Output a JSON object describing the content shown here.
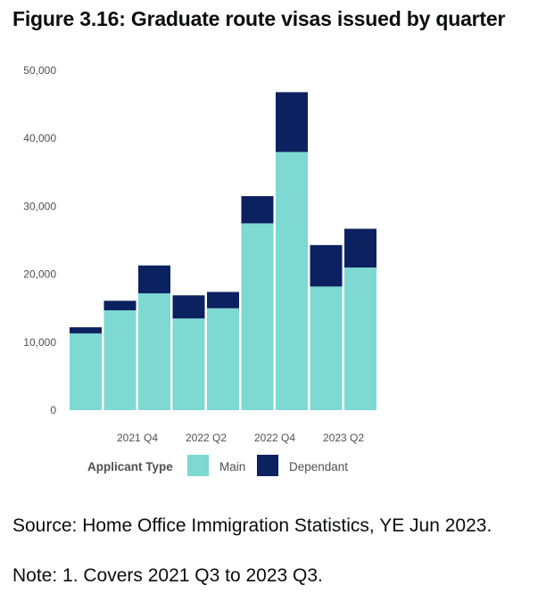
{
  "figure_title": "Figure 3.16: Graduate route visas issued by quarter",
  "chart_data": {
    "type": "bar",
    "stacked": true,
    "categories": [
      "2021 Q3",
      "2021 Q4",
      "2022 Q1",
      "2022 Q2",
      "2022 Q3",
      "2022 Q4",
      "2023 Q1",
      "2023 Q2",
      "2023 Q3"
    ],
    "tick_labels": [
      "",
      "2021 Q4",
      "",
      "2022 Q2",
      "",
      "2022 Q4",
      "",
      "2023 Q2",
      ""
    ],
    "series": [
      {
        "name": "Main",
        "color": "#7dd9d2",
        "values": [
          11300,
          14700,
          17200,
          13500,
          15000,
          27500,
          38000,
          18200,
          21000
        ]
      },
      {
        "name": "Dependant",
        "color": "#0b2160",
        "values": [
          900,
          1400,
          4100,
          3400,
          2400,
          4000,
          8800,
          6100,
          5700
        ]
      }
    ],
    "y_ticks": [
      "0",
      "10,000",
      "20,000",
      "30,000",
      "40,000",
      "50,000"
    ],
    "ylim": [
      0,
      50000
    ],
    "legend_title": "Applicant Type",
    "legend_position": "bottom",
    "xlabel": "",
    "ylabel": ""
  },
  "source_text": "Source: Home Office Immigration Statistics, YE Jun 2023.",
  "note_text": "Note: 1. Covers 2021 Q3 to 2023 Q3."
}
